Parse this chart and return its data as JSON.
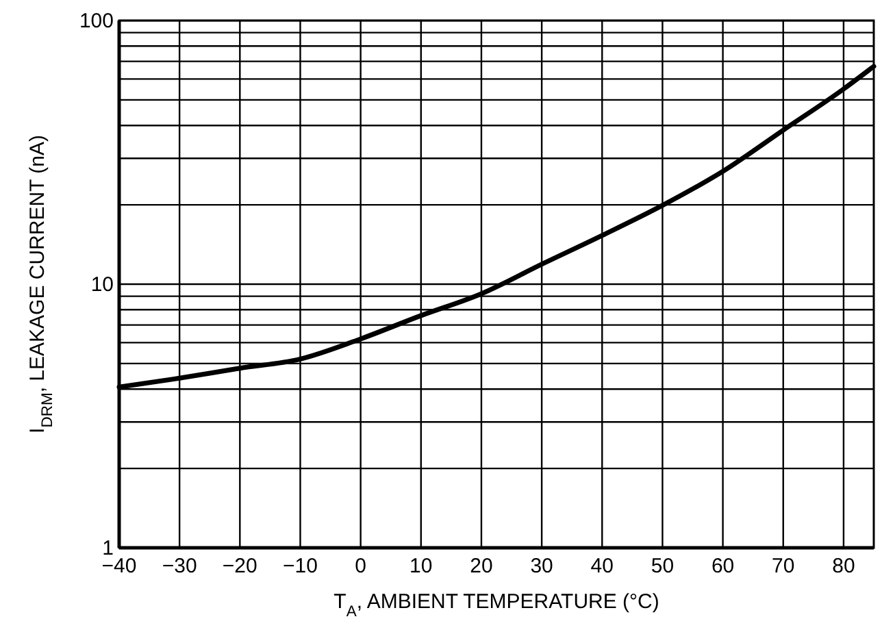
{
  "chart_data": {
    "type": "line",
    "xlabel": "T$_{A}$, AMBIENT TEMPERATURE (°C)",
    "ylabel": "I$_{DRM}$, LEAKAGE CURRENT (nA)",
    "log": "y",
    "grid": true,
    "marker": "none",
    "line_style": "solid",
    "xlim": [
      -40,
      85
    ],
    "ylim": [
      1,
      100
    ],
    "xticks": [
      {
        "value": -40,
        "label": "−40"
      },
      {
        "value": -30,
        "label": "−30"
      },
      {
        "value": -20,
        "label": "−20"
      },
      {
        "value": -10,
        "label": "−10"
      },
      0,
      10,
      20,
      30,
      40,
      50,
      60,
      70,
      80
    ],
    "yticks": [
      1,
      {
        "value": 2,
        "label": null
      },
      {
        "value": 3,
        "label": null
      },
      {
        "value": 4,
        "label": null
      },
      {
        "value": 5,
        "label": null
      },
      {
        "value": 6,
        "label": null
      },
      {
        "value": 7,
        "label": null
      },
      {
        "value": 8,
        "label": null
      },
      {
        "value": 9,
        "label": null
      },
      10,
      {
        "value": 20,
        "label": null
      },
      {
        "value": 30,
        "label": null
      },
      {
        "value": 40,
        "label": null
      },
      {
        "value": 50,
        "label": null
      },
      {
        "value": 60,
        "label": null
      },
      {
        "value": 70,
        "label": null
      },
      {
        "value": 80,
        "label": null
      },
      {
        "value": 90,
        "label": null
      },
      100
    ],
    "series": [
      {
        "color": "#000000",
        "x": [
          -40,
          -30,
          -20,
          -10,
          0,
          10,
          20,
          30,
          40,
          50,
          60,
          70,
          80,
          85
        ],
        "values": [
          4.07,
          4.4,
          4.8,
          5.2,
          6.2,
          7.6,
          9.2,
          11.9,
          15.3,
          19.9,
          26.8,
          38.4,
          55,
          67
        ]
      }
    ]
  }
}
